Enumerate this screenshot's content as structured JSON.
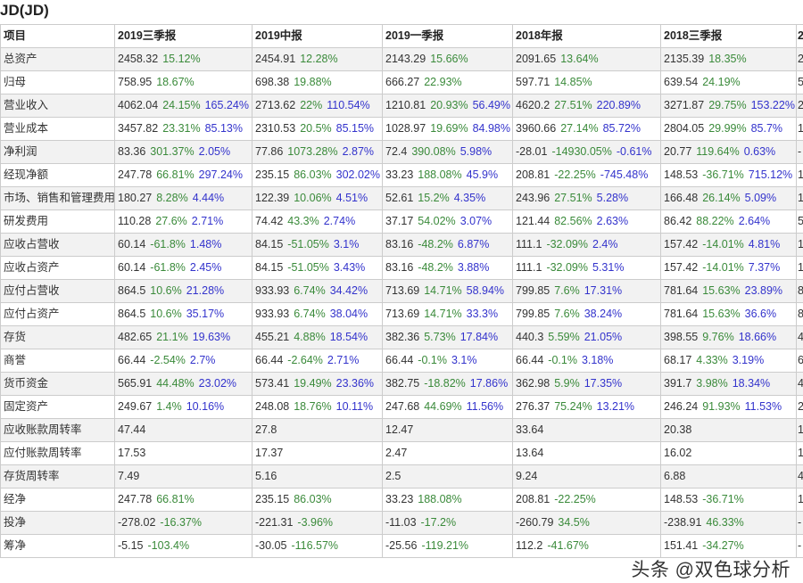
{
  "title": "JD(JD)",
  "headers": [
    "项目",
    "2019三季报",
    "2019中报",
    "2019一季报",
    "2018年报",
    "2018三季报",
    "2"
  ],
  "rows": [
    {
      "label": "总资产",
      "cells": [
        {
          "v": "2458.32",
          "g": "15.12%"
        },
        {
          "v": "2454.91",
          "g": "12.28%"
        },
        {
          "v": "2143.29",
          "g": "15.66%"
        },
        {
          "v": "2091.65",
          "g": "13.64%"
        },
        {
          "v": "2135.39",
          "g": "18.35%"
        },
        {
          "v": "2"
        }
      ]
    },
    {
      "label": "归母",
      "cells": [
        {
          "v": "758.95",
          "g": "18.67%"
        },
        {
          "v": "698.38",
          "g": "19.88%"
        },
        {
          "v": "666.27",
          "g": "22.93%"
        },
        {
          "v": "597.71",
          "g": "14.85%"
        },
        {
          "v": "639.54",
          "g": "24.19%"
        },
        {
          "v": "5"
        }
      ]
    },
    {
      "label": "营业收入",
      "cells": [
        {
          "v": "4062.04",
          "g": "24.15%",
          "b": "165.24%"
        },
        {
          "v": "2713.62",
          "g": "22%",
          "b": "110.54%"
        },
        {
          "v": "1210.81",
          "g": "20.93%",
          "b": "56.49%"
        },
        {
          "v": "4620.2",
          "g": "27.51%",
          "b": "220.89%"
        },
        {
          "v": "3271.87",
          "g": "29.75%",
          "b": "153.22%"
        },
        {
          "v": "2"
        }
      ]
    },
    {
      "label": "营业成本",
      "cells": [
        {
          "v": "3457.82",
          "g": "23.31%",
          "b": "85.13%"
        },
        {
          "v": "2310.53",
          "g": "20.5%",
          "b": "85.15%"
        },
        {
          "v": "1028.97",
          "g": "19.69%",
          "b": "84.98%"
        },
        {
          "v": "3960.66",
          "g": "27.14%",
          "b": "85.72%"
        },
        {
          "v": "2804.05",
          "g": "29.99%",
          "b": "85.7%"
        },
        {
          "v": "1"
        }
      ]
    },
    {
      "label": "净利润",
      "cells": [
        {
          "v": "83.36",
          "g": "301.37%",
          "b": "2.05%"
        },
        {
          "v": "77.86",
          "g": "1073.28%",
          "b": "2.87%"
        },
        {
          "v": "72.4",
          "g": "390.08%",
          "b": "5.98%"
        },
        {
          "v": "-28.01",
          "g": "-14930.05%",
          "b": "-0.61%"
        },
        {
          "v": "20.77",
          "g": "119.64%",
          "b": "0.63%"
        },
        {
          "v": "-"
        }
      ]
    },
    {
      "label": "经现净额",
      "cells": [
        {
          "v": "247.78",
          "g": "66.81%",
          "b": "297.24%"
        },
        {
          "v": "235.15",
          "g": "86.03%",
          "b": "302.02%"
        },
        {
          "v": "33.23",
          "g": "188.08%",
          "b": "45.9%"
        },
        {
          "v": "208.81",
          "g": "-22.25%",
          "b": "-745.48%"
        },
        {
          "v": "148.53",
          "g": "-36.71%",
          "b": "715.12%"
        },
        {
          "v": "1"
        }
      ]
    },
    {
      "label": "市场、销售和管理费用",
      "cells": [
        {
          "v": "180.27",
          "g": "8.28%",
          "b": "4.44%"
        },
        {
          "v": "122.39",
          "g": "10.06%",
          "b": "4.51%"
        },
        {
          "v": "52.61",
          "g": "15.2%",
          "b": "4.35%"
        },
        {
          "v": "243.96",
          "g": "27.51%",
          "b": "5.28%"
        },
        {
          "v": "166.48",
          "g": "26.14%",
          "b": "5.09%"
        },
        {
          "v": "1"
        }
      ]
    },
    {
      "label": "研发费用",
      "cells": [
        {
          "v": "110.28",
          "g": "27.6%",
          "b": "2.71%"
        },
        {
          "v": "74.42",
          "g": "43.3%",
          "b": "2.74%"
        },
        {
          "v": "37.17",
          "g": "54.02%",
          "b": "3.07%"
        },
        {
          "v": "121.44",
          "g": "82.56%",
          "b": "2.63%"
        },
        {
          "v": "86.42",
          "g": "88.22%",
          "b": "2.64%"
        },
        {
          "v": "5"
        }
      ]
    },
    {
      "label": "应收占营收",
      "cells": [
        {
          "v": "60.14",
          "g": "-61.8%",
          "b": "1.48%"
        },
        {
          "v": "84.15",
          "g": "-51.05%",
          "b": "3.1%"
        },
        {
          "v": "83.16",
          "g": "-48.2%",
          "b": "6.87%"
        },
        {
          "v": "111.1",
          "g": "-32.09%",
          "b": "2.4%"
        },
        {
          "v": "157.42",
          "g": "-14.01%",
          "b": "4.81%"
        },
        {
          "v": "1"
        }
      ]
    },
    {
      "label": "应收占资产",
      "cells": [
        {
          "v": "60.14",
          "g": "-61.8%",
          "b": "2.45%"
        },
        {
          "v": "84.15",
          "g": "-51.05%",
          "b": "3.43%"
        },
        {
          "v": "83.16",
          "g": "-48.2%",
          "b": "3.88%"
        },
        {
          "v": "111.1",
          "g": "-32.09%",
          "b": "5.31%"
        },
        {
          "v": "157.42",
          "g": "-14.01%",
          "b": "7.37%"
        },
        {
          "v": "1"
        }
      ]
    },
    {
      "label": "应付占营收",
      "cells": [
        {
          "v": "864.5",
          "g": "10.6%",
          "b": "21.28%"
        },
        {
          "v": "933.93",
          "g": "6.74%",
          "b": "34.42%"
        },
        {
          "v": "713.69",
          "g": "14.71%",
          "b": "58.94%"
        },
        {
          "v": "799.85",
          "g": "7.6%",
          "b": "17.31%"
        },
        {
          "v": "781.64",
          "g": "15.63%",
          "b": "23.89%"
        },
        {
          "v": "8"
        }
      ]
    },
    {
      "label": "应付占资产",
      "cells": [
        {
          "v": "864.5",
          "g": "10.6%",
          "b": "35.17%"
        },
        {
          "v": "933.93",
          "g": "6.74%",
          "b": "38.04%"
        },
        {
          "v": "713.69",
          "g": "14.71%",
          "b": "33.3%"
        },
        {
          "v": "799.85",
          "g": "7.6%",
          "b": "38.24%"
        },
        {
          "v": "781.64",
          "g": "15.63%",
          "b": "36.6%"
        },
        {
          "v": "8"
        }
      ]
    },
    {
      "label": "存货",
      "cells": [
        {
          "v": "482.65",
          "g": "21.1%",
          "b": "19.63%"
        },
        {
          "v": "455.21",
          "g": "4.88%",
          "b": "18.54%"
        },
        {
          "v": "382.36",
          "g": "5.73%",
          "b": "17.84%"
        },
        {
          "v": "440.3",
          "g": "5.59%",
          "b": "21.05%"
        },
        {
          "v": "398.55",
          "g": "9.76%",
          "b": "18.66%"
        },
        {
          "v": "4"
        }
      ]
    },
    {
      "label": "商誉",
      "cells": [
        {
          "v": "66.44",
          "g": "-2.54%",
          "b": "2.7%"
        },
        {
          "v": "66.44",
          "g": "-2.64%",
          "b": "2.71%"
        },
        {
          "v": "66.44",
          "g": "-0.1%",
          "b": "3.1%"
        },
        {
          "v": "66.44",
          "g": "-0.1%",
          "b": "3.18%"
        },
        {
          "v": "68.17",
          "g": "4.33%",
          "b": "3.19%"
        },
        {
          "v": "6"
        }
      ]
    },
    {
      "label": "货币资金",
      "cells": [
        {
          "v": "565.91",
          "g": "44.48%",
          "b": "23.02%"
        },
        {
          "v": "573.41",
          "g": "19.49%",
          "b": "23.36%"
        },
        {
          "v": "382.75",
          "g": "-18.82%",
          "b": "17.86%"
        },
        {
          "v": "362.98",
          "g": "5.9%",
          "b": "17.35%"
        },
        {
          "v": "391.7",
          "g": "3.98%",
          "b": "18.34%"
        },
        {
          "v": "4"
        }
      ]
    },
    {
      "label": "固定资产",
      "cells": [
        {
          "v": "249.67",
          "g": "1.4%",
          "b": "10.16%"
        },
        {
          "v": "248.08",
          "g": "18.76%",
          "b": "10.11%"
        },
        {
          "v": "247.68",
          "g": "44.69%",
          "b": "11.56%"
        },
        {
          "v": "276.37",
          "g": "75.24%",
          "b": "13.21%"
        },
        {
          "v": "246.24",
          "g": "91.93%",
          "b": "11.53%"
        },
        {
          "v": "2"
        }
      ]
    },
    {
      "label": "应收账款周转率",
      "cells": [
        {
          "v": "47.44"
        },
        {
          "v": "27.8"
        },
        {
          "v": "12.47"
        },
        {
          "v": "33.64"
        },
        {
          "v": "20.38"
        },
        {
          "v": "1"
        }
      ]
    },
    {
      "label": "应付账款周转率",
      "cells": [
        {
          "v": "17.53"
        },
        {
          "v": "17.37"
        },
        {
          "v": "2.47"
        },
        {
          "v": "13.64"
        },
        {
          "v": "16.02"
        },
        {
          "v": "1"
        }
      ]
    },
    {
      "label": "存货周转率",
      "cells": [
        {
          "v": "7.49"
        },
        {
          "v": "5.16"
        },
        {
          "v": "2.5"
        },
        {
          "v": "9.24"
        },
        {
          "v": "6.88"
        },
        {
          "v": "4"
        }
      ]
    },
    {
      "label": "经净",
      "cells": [
        {
          "v": "247.78",
          "g": "66.81%"
        },
        {
          "v": "235.15",
          "g": "86.03%"
        },
        {
          "v": "33.23",
          "g": "188.08%"
        },
        {
          "v": "208.81",
          "g": "-22.25%"
        },
        {
          "v": "148.53",
          "g": "-36.71%"
        },
        {
          "v": "1"
        }
      ]
    },
    {
      "label": "投净",
      "cells": [
        {
          "v": "-278.02",
          "g": "-16.37%"
        },
        {
          "v": "-221.31",
          "g": "-3.96%"
        },
        {
          "v": "-11.03",
          "g": "-17.2%"
        },
        {
          "v": "-260.79",
          "g": "34.5%"
        },
        {
          "v": "-238.91",
          "g": "46.33%"
        },
        {
          "v": "-"
        }
      ]
    },
    {
      "label": "筹净",
      "cells": [
        {
          "v": "-5.15",
          "g": "-103.4%"
        },
        {
          "v": "-30.05",
          "g": "-116.57%"
        },
        {
          "v": "-25.56",
          "g": "-119.21%"
        },
        {
          "v": "112.2",
          "g": "-41.67%"
        },
        {
          "v": "151.41",
          "g": "-34.27%"
        },
        {
          "v": "-"
        }
      ]
    }
  ],
  "watermark": "头条 @双色球分析",
  "colors": {
    "growth": "#3a8a3a",
    "ratio": "#3333cc",
    "stripe": "#f2f2f2"
  }
}
